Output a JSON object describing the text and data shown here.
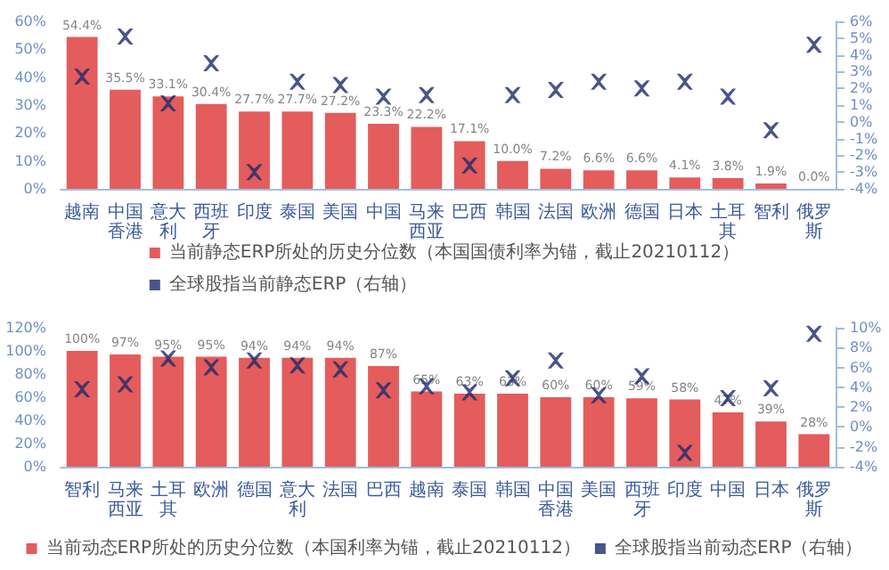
{
  "chart_data": [
    {
      "type": "bar",
      "categories": [
        "越南",
        "中国香港",
        "意大利",
        "西班牙",
        "印度",
        "泰国",
        "美国",
        "中国",
        "马来西亚",
        "巴西",
        "韩国",
        "法国",
        "欧洲",
        "德国",
        "日本",
        "土耳其",
        "智利",
        "俄罗斯"
      ],
      "series": [
        {
          "name": "当前静态ERP所处的历史分位数（本国国债利率为锚，截止20210112）",
          "color": "#e45c5c",
          "values": [
            54.4,
            35.5,
            33.1,
            30.4,
            27.7,
            27.7,
            27.2,
            23.3,
            22.2,
            17.1,
            10.0,
            7.2,
            6.6,
            6.6,
            4.1,
            3.8,
            1.9,
            0.0
          ],
          "value_labels": [
            "54.4%",
            "35.5%",
            "33.1%",
            "30.4%",
            "27.7%",
            "27.7%",
            "27.2%",
            "23.3%",
            "22.2%",
            "17.1%",
            "10.0%",
            "7.2%",
            "6.6%",
            "6.6%",
            "4.1%",
            "3.8%",
            "1.9%",
            "0.0%"
          ]
        },
        {
          "type": "scatter",
          "name": "全球股指当前静态ERP（右轴）",
          "color": "#1c2a6b",
          "axis": "y2",
          "marker": "cross",
          "values": [
            2.7,
            5.1,
            1.1,
            3.5,
            -3.0,
            2.4,
            2.2,
            1.5,
            1.6,
            -2.6,
            1.6,
            1.9,
            2.4,
            2.0,
            2.4,
            1.5,
            -0.5,
            4.6
          ]
        }
      ],
      "ylim": [
        0,
        60
      ],
      "yticks": [
        {
          "value": 0,
          "label": "0%"
        },
        {
          "value": 10,
          "label": "10%"
        },
        {
          "value": 20,
          "label": "20%"
        },
        {
          "value": 30,
          "label": "30%"
        },
        {
          "value": 40,
          "label": "40%"
        },
        {
          "value": 50,
          "label": "50%"
        },
        {
          "value": 60,
          "label": "60%"
        }
      ],
      "y2lim": [
        -4,
        6
      ],
      "y2ticks": [
        {
          "value": -4,
          "label": "-4%"
        },
        {
          "value": -3,
          "label": "-3%"
        },
        {
          "value": -2,
          "label": "-2%"
        },
        {
          "value": -1,
          "label": "-1%"
        },
        {
          "value": 0,
          "label": "0%"
        },
        {
          "value": 1,
          "label": "1%"
        },
        {
          "value": 2,
          "label": "2%"
        },
        {
          "value": 3,
          "label": "3%"
        },
        {
          "value": 4,
          "label": "4%"
        },
        {
          "value": 5,
          "label": "5%"
        },
        {
          "value": 6,
          "label": "6%"
        }
      ],
      "legend": "bottom",
      "grid": false
    },
    {
      "type": "bar",
      "categories": [
        "智利",
        "马来西亚",
        "土耳其",
        "欧洲",
        "德国",
        "意大利",
        "法国",
        "巴西",
        "越南",
        "泰国",
        "韩国",
        "中国香港",
        "美国",
        "西班牙",
        "印度",
        "中国",
        "日本",
        "俄罗斯"
      ],
      "series": [
        {
          "name": "当前动态ERP所处的历史分位数（本国利率为锚，截止20210112）",
          "color": "#e45c5c",
          "values": [
            100,
            97,
            95,
            95,
            94,
            94,
            94,
            87,
            65,
            63,
            63,
            60,
            60,
            59,
            58,
            47,
            39,
            28
          ],
          "value_labels": [
            "100%",
            "97%",
            "95%",
            "95%",
            "94%",
            "94%",
            "94%",
            "87%",
            "65%",
            "63%",
            "63%",
            "60%",
            "60%",
            "59%",
            "58%",
            "47%",
            "39%",
            "28%"
          ]
        },
        {
          "type": "scatter",
          "name": "全球股指当前动态ERP（右轴）",
          "color": "#1c2a6b",
          "axis": "y2",
          "marker": "cross",
          "values": [
            3.8,
            4.3,
            6.9,
            6.0,
            6.7,
            6.2,
            5.8,
            3.7,
            4.1,
            3.5,
            4.9,
            6.7,
            3.2,
            5.1,
            -2.6,
            2.9,
            3.9,
            9.4
          ]
        }
      ],
      "ylim": [
        0,
        120
      ],
      "yticks": [
        {
          "value": 0,
          "label": "0%"
        },
        {
          "value": 20,
          "label": "20%"
        },
        {
          "value": 40,
          "label": "40%"
        },
        {
          "value": 60,
          "label": "60%"
        },
        {
          "value": 80,
          "label": "80%"
        },
        {
          "value": 100,
          "label": "100%"
        },
        {
          "value": 120,
          "label": "120%"
        }
      ],
      "y2lim": [
        -4,
        10
      ],
      "y2ticks": [
        {
          "value": -4,
          "label": "-4%"
        },
        {
          "value": -2,
          "label": "-2%"
        },
        {
          "value": 0,
          "label": "0%"
        },
        {
          "value": 2,
          "label": "2%"
        },
        {
          "value": 4,
          "label": "4%"
        },
        {
          "value": 6,
          "label": "6%"
        },
        {
          "value": 8,
          "label": "8%"
        },
        {
          "value": 10,
          "label": "10%"
        }
      ],
      "legend": "bottom",
      "grid": false
    }
  ]
}
